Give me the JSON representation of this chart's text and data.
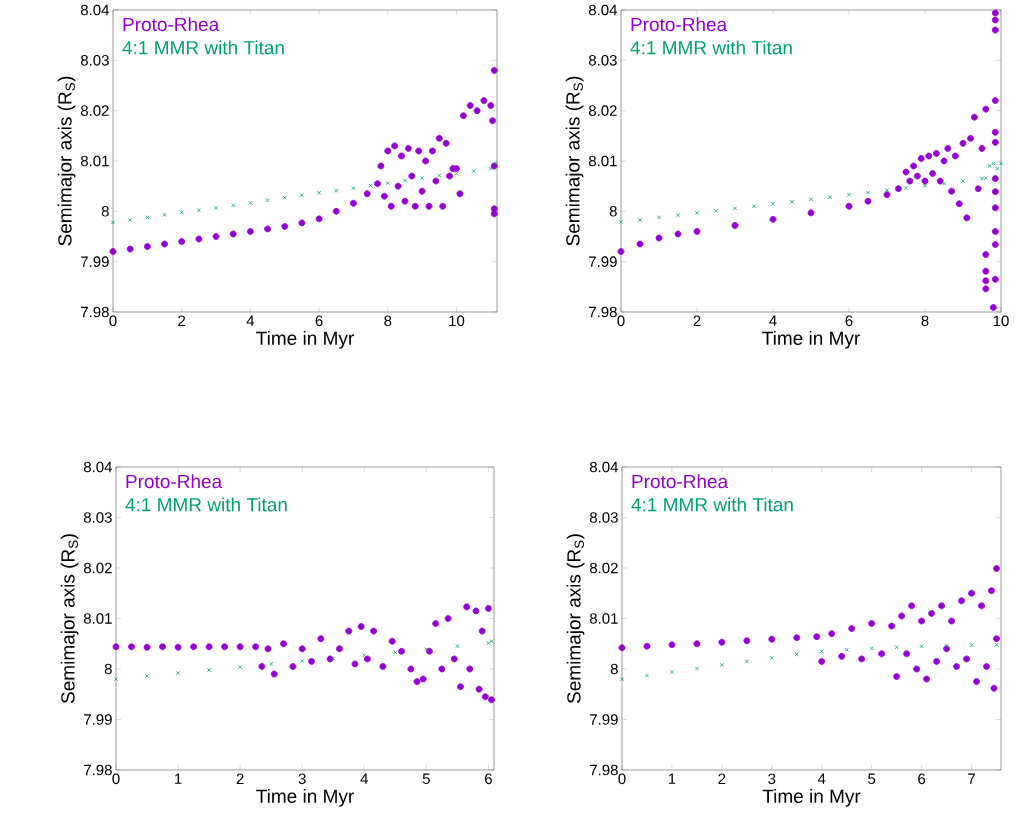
{
  "chart_data": [
    {
      "type": "scatter",
      "xlabel": "Time in Myr",
      "ylabel": "Semimajor axis (R$_{S}$)",
      "xlim": [
        0,
        11.18
      ],
      "ylim": [
        7.98,
        8.04
      ],
      "xticks": [
        0,
        2,
        4,
        6,
        8,
        10
      ],
      "yticks": [
        7.98,
        7.99,
        8,
        8.01,
        8.02,
        8.03,
        8.04
      ],
      "legend": "top left",
      "series": [
        {
          "name": "Proto-Rhea",
          "color": "#9400d3",
          "marker": "circle",
          "x": [
            0,
            0.5,
            1,
            1.5,
            2,
            2.5,
            3,
            3.5,
            4,
            4.5,
            5,
            5.5,
            6,
            6.5,
            7,
            7.4,
            7.7,
            7.8,
            7.9,
            8.0,
            8.1,
            8.2,
            8.3,
            8.4,
            8.5,
            8.6,
            8.7,
            8.8,
            8.9,
            9.0,
            9.1,
            9.2,
            9.3,
            9.4,
            9.5,
            9.6,
            9.7,
            9.8,
            9.9,
            10.0,
            10.1,
            10.2,
            10.4,
            10.6,
            10.8,
            11.0,
            11.05,
            11.1,
            11.1,
            11.1,
            11.1
          ],
          "values": [
            7.992,
            7.9925,
            7.993,
            7.9935,
            7.994,
            7.9945,
            7.995,
            7.9955,
            7.996,
            7.9965,
            7.997,
            7.9977,
            7.9985,
            8.0,
            8.0016,
            8.0035,
            8.0055,
            8.009,
            8.003,
            8.012,
            8.001,
            8.013,
            8.005,
            8.011,
            8.002,
            8.0125,
            8.007,
            8.001,
            8.012,
            8.004,
            8.01,
            8.001,
            8.012,
            8.006,
            8.0145,
            8.001,
            8.0135,
            8.007,
            8.0085,
            8.0085,
            8.0035,
            8.019,
            8.021,
            8.02,
            8.022,
            8.021,
            8.018,
            8.028,
            8.0005,
            7.9995,
            8.009
          ]
        },
        {
          "name": "4:1 MMR with Titan",
          "color": "#009e73",
          "marker": "cross",
          "x": [
            0,
            0.5,
            1,
            1.5,
            2,
            2.5,
            3,
            3.5,
            4,
            4.5,
            5,
            5.5,
            6,
            6.5,
            7,
            7.5,
            8,
            8.5,
            9,
            9.5,
            10,
            10.5,
            11,
            11.15
          ],
          "values": [
            7.9978,
            7.9983,
            7.9988,
            7.9993,
            7.9998,
            8.0002,
            8.0007,
            8.0012,
            8.0017,
            8.0022,
            8.0027,
            8.0032,
            8.0037,
            8.0041,
            8.0046,
            8.0051,
            8.0056,
            8.0061,
            8.0066,
            8.0071,
            8.0075,
            8.008,
            8.0085,
            8.0095
          ]
        }
      ]
    },
    {
      "type": "scatter",
      "xlabel": "Time in Myr",
      "ylabel": "Semimajor axis (R$_{S}$)",
      "xlim": [
        0,
        10
      ],
      "ylim": [
        7.98,
        8.04
      ],
      "xticks": [
        0,
        2,
        4,
        6,
        8,
        10
      ],
      "yticks": [
        7.98,
        7.99,
        8,
        8.01,
        8.02,
        8.03,
        8.04
      ],
      "legend": "top left",
      "series": [
        {
          "name": "Proto-Rhea",
          "color": "#9400d3",
          "marker": "circle",
          "x": [
            0,
            0.5,
            1,
            1.5,
            2,
            3,
            4,
            5,
            6,
            6.5,
            7,
            7.3,
            7.5,
            7.6,
            7.7,
            7.8,
            7.9,
            8.0,
            8.1,
            8.2,
            8.3,
            8.4,
            8.5,
            8.6,
            8.7,
            8.8,
            8.9,
            9.0,
            9.1,
            9.2,
            9.3,
            9.4,
            9.5,
            9.6,
            9.6,
            9.6,
            9.6,
            9.6,
            9.85,
            9.85,
            9.85,
            9.85,
            9.85,
            9.85,
            9.85,
            9.85,
            9.85,
            9.85,
            9.85,
            9.85,
            9.8
          ],
          "values": [
            7.992,
            7.9935,
            7.9947,
            7.9955,
            7.996,
            7.9972,
            7.9984,
            7.9997,
            8.001,
            8.002,
            8.0033,
            8.0045,
            8.0078,
            8.006,
            8.009,
            8.007,
            8.0105,
            8.006,
            8.011,
            8.0075,
            8.0115,
            8.006,
            8.01,
            8.0125,
            8.004,
            8.011,
            8.0015,
            8.0135,
            7.9987,
            8.0145,
            8.0187,
            8.0045,
            8.0125,
            8.0203,
            7.9914,
            7.9881,
            7.9862,
            7.9846,
            8.0394,
            8.038,
            8.036,
            8.022,
            8.0157,
            8.0137,
            8.0065,
            8.0039,
            8.0007,
            7.996,
            7.9934,
            7.9865,
            7.9809
          ]
        },
        {
          "name": "4:1 MMR with Titan",
          "color": "#009e73",
          "marker": "cross",
          "x": [
            0,
            0.5,
            1,
            1.5,
            2,
            2.5,
            3,
            3.5,
            4,
            4.5,
            5,
            5.5,
            6,
            6.5,
            7,
            7.5,
            8,
            8.5,
            9,
            9.5,
            9.6,
            9.7,
            9.8,
            9.9,
            10
          ],
          "values": [
            7.9979,
            7.9983,
            7.9988,
            7.9992,
            7.9997,
            8.0001,
            8.0006,
            8.001,
            8.0015,
            8.0019,
            8.0024,
            8.0028,
            8.0033,
            8.0037,
            8.0042,
            8.0046,
            8.0051,
            8.0055,
            8.006,
            8.0065,
            8.0066,
            8.009,
            8.0095,
            8.0085,
            8.0095
          ]
        }
      ]
    },
    {
      "type": "scatter",
      "xlabel": "Time in Myr",
      "ylabel": "Semimajor axis (R$_{S}$)",
      "xlim": [
        0,
        6.09
      ],
      "ylim": [
        7.98,
        8.04
      ],
      "xticks": [
        0,
        1,
        2,
        3,
        4,
        5,
        6
      ],
      "yticks": [
        7.98,
        7.99,
        8,
        8.01,
        8.02,
        8.03,
        8.04
      ],
      "legend": "top left",
      "series": [
        {
          "name": "Proto-Rhea",
          "color": "#9400d3",
          "marker": "circle",
          "x": [
            0,
            0.25,
            0.5,
            0.75,
            1,
            1.25,
            1.5,
            1.75,
            2,
            2.25,
            2.35,
            2.45,
            2.55,
            2.7,
            2.85,
            3.0,
            3.15,
            3.3,
            3.45,
            3.6,
            3.75,
            3.85,
            3.95,
            4.05,
            4.15,
            4.3,
            4.45,
            4.6,
            4.75,
            4.85,
            4.95,
            5.05,
            5.15,
            5.25,
            5.35,
            5.45,
            5.55,
            5.65,
            5.7,
            5.8,
            5.85,
            5.9,
            5.95,
            6.0,
            6.05
          ],
          "values": [
            8.0044,
            8.0044,
            8.0043,
            8.0044,
            8.0043,
            8.0044,
            8.0044,
            8.0044,
            8.0044,
            8.0044,
            8.0005,
            8.004,
            7.999,
            8.005,
            8.0005,
            8.004,
            8.0015,
            8.006,
            8.002,
            8.004,
            8.0075,
            8.001,
            8.0084,
            8.002,
            8.0075,
            8.0005,
            8.0055,
            8.0035,
            8.0,
            7.9975,
            7.998,
            8.0035,
            8.009,
            8.0,
            8.01,
            8.002,
            7.9965,
            8.0123,
            8.0,
            8.0115,
            7.996,
            8.0075,
            7.9945,
            8.012,
            7.9939
          ]
        },
        {
          "name": "4:1 MMR with Titan",
          "color": "#009e73",
          "marker": "cross",
          "x": [
            0,
            0.5,
            1,
            1.5,
            2,
            2.5,
            3,
            3.5,
            4,
            4.5,
            5,
            5.5,
            6,
            6.05
          ],
          "values": [
            7.998,
            7.9986,
            7.9992,
            7.9998,
            8.0004,
            8.001,
            8.0016,
            8.0021,
            8.0027,
            8.0033,
            8.0039,
            8.0045,
            8.0051,
            8.0055
          ]
        }
      ]
    },
    {
      "type": "scatter",
      "xlabel": "Time in Myr",
      "ylabel": "Semimajor axis (R$_{S}$)",
      "xlim": [
        0,
        7.59
      ],
      "ylim": [
        7.98,
        8.04
      ],
      "xticks": [
        0,
        1,
        2,
        3,
        4,
        5,
        6,
        7
      ],
      "yticks": [
        7.98,
        7.99,
        8,
        8.01,
        8.02,
        8.03,
        8.04
      ],
      "legend": "top left",
      "series": [
        {
          "name": "Proto-Rhea",
          "color": "#9400d3",
          "marker": "circle",
          "x": [
            0,
            0.5,
            1,
            1.5,
            2,
            2.5,
            3,
            3.5,
            3.9,
            4.0,
            4.2,
            4.4,
            4.6,
            4.8,
            5.0,
            5.2,
            5.4,
            5.5,
            5.6,
            5.7,
            5.8,
            5.9,
            6.0,
            6.1,
            6.2,
            6.3,
            6.4,
            6.5,
            6.6,
            6.7,
            6.8,
            6.9,
            7.0,
            7.1,
            7.2,
            7.3,
            7.4,
            7.45,
            7.5,
            7.5
          ],
          "values": [
            8.0042,
            8.0045,
            8.0048,
            8.005,
            8.0053,
            8.0056,
            8.0059,
            8.0062,
            8.0064,
            8.0015,
            8.007,
            8.0025,
            8.008,
            8.002,
            8.009,
            8.003,
            8.0085,
            7.9985,
            8.0105,
            8.003,
            8.0125,
            8.0,
            8.0095,
            7.998,
            8.011,
            8.0015,
            8.0125,
            8.004,
            8.0095,
            8.0005,
            8.0135,
            8.002,
            8.015,
            7.9975,
            8.0125,
            8.0005,
            8.0155,
            7.9962,
            8.0199,
            8.006
          ]
        },
        {
          "name": "4:1 MMR with Titan",
          "color": "#009e73",
          "marker": "cross",
          "x": [
            0,
            0.5,
            1,
            1.5,
            2,
            2.5,
            3,
            3.5,
            4,
            4.5,
            5,
            5.5,
            6,
            6.5,
            7,
            7.5
          ],
          "values": [
            7.998,
            7.9987,
            7.9994,
            8.0001,
            8.0008,
            8.0015,
            8.0022,
            8.0029,
            8.0035,
            8.0038,
            8.0041,
            8.0043,
            8.0045,
            8.0046,
            8.0047,
            8.0048
          ]
        }
      ]
    }
  ]
}
